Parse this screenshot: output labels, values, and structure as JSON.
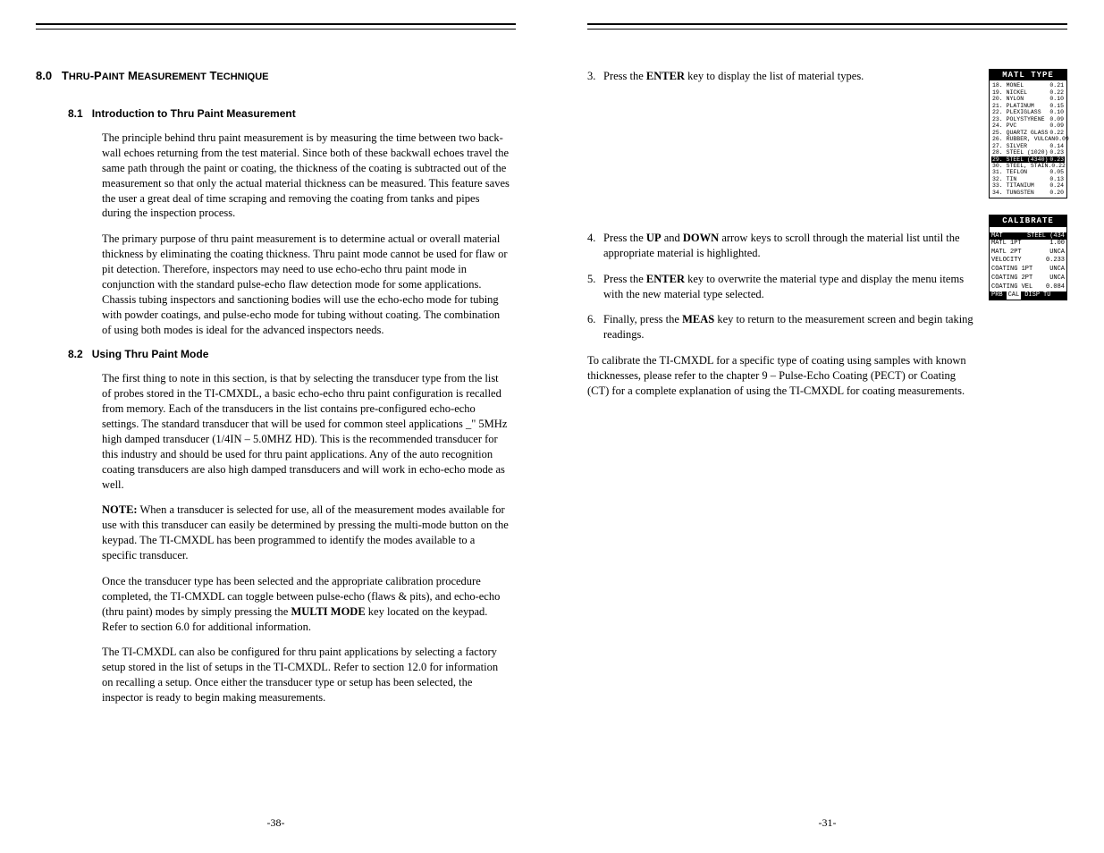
{
  "left": {
    "h1_num": "8.0",
    "h1_a": "T",
    "h1_b": "HRU",
    "h1_c": "-P",
    "h1_d": "AINT",
    "h1_e": " M",
    "h1_f": "EASUREMENT",
    "h1_g": " T",
    "h1_h": "ECHNIQUE",
    "s81_num": "8.1",
    "s81_title": "Introduction to Thru Paint Measurement",
    "p1": "The principle behind thru paint measurement is by measuring the time between two back-wall echoes returning from the test material. Since both of these backwall echoes travel the same path through the paint or coating, the thickness of the coating is subtracted out of the measurement so that only the actual material thickness can be measured. This feature saves the user a great deal of time scraping and removing the coating from tanks and pipes during the inspection process.",
    "p2": "The primary purpose of thru paint measurement is to determine actual or overall material thickness by eliminating the coating thickness. Thru paint mode cannot be used for flaw or pit detection. Therefore, inspectors may need to use echo-echo thru paint mode in conjunction with the standard pulse-echo flaw detection mode for some applications. Chassis tubing inspectors and sanctioning bodies will use the echo-echo mode for tubing with powder coatings, and pulse-echo mode for tubing without coating. The combination of using both modes is ideal for the advanced inspectors needs.",
    "s82_num": "8.2",
    "s82_title": "Using Thru Paint Mode",
    "p3": "The first thing to note in this section, is that by selecting the transducer type from the list of probes stored in the TI-CMXDL, a basic echo-echo thru paint configuration is recalled from memory. Each of the transducers in the list contains pre-configured echo-echo settings. The standard transducer that will be used for common steel applications _\" 5MHz high damped transducer (1/4IN – 5.0MHZ HD). This is the recommended transducer for this industry and should be used for thru paint applications. Any of the auto recognition coating transducers are also high damped transducers and will work in echo-echo mode as well.",
    "p4a": "NOTE:",
    "p4b": " When a transducer is selected for use, all of the measurement modes available for use with this transducer can easily be determined by pressing the multi-mode button on  the keypad. The TI-CMXDL has been programmed to identify the modes available to a specific transducer.",
    "p5a": "Once the transducer type has been selected and the appropriate calibration procedure completed, the TI-CMXDL can toggle between pulse-echo (flaws & pits), and echo-echo (thru paint) modes by simply pressing the ",
    "p5b": "MULTI MODE",
    "p5c": " key located on the keypad. Refer to section 6.0 for additional information.",
    "p6": "The TI-CMXDL can also be configured for thru paint applications by selecting a factory setup stored in the list of setups in the TI-CMXDL. Refer to section 12.0 for information on recalling a setup. Once either the transducer type or setup has been selected, the inspector is ready to begin making measurements.",
    "footer": "-38-"
  },
  "right": {
    "step3_num": "3.",
    "step3a": "Press the ",
    "step3b": "ENTER",
    "step3c": " key to display the list of material types.",
    "step4_num": "4.",
    "step4a": "Press the ",
    "step4b": "UP",
    "step4c": " and ",
    "step4d": "DOWN",
    "step4e": " arrow keys to scroll through the material list until the appropriate material is highlighted.",
    "step5_num": "5.",
    "step5a": "Press the ",
    "step5b": "ENTER",
    "step5c": " key to overwrite the material type and display the menu items with the new material type selected.",
    "step6_num": "6.",
    "step6a": "Finally, press the ",
    "step6b": "MEAS",
    "step6c": " key to return to the measurement screen and begin taking readings.",
    "summary": "To calibrate the TI-CMXDL for a specific type of coating using samples with known thicknesses, please refer to the chapter 9 – Pulse-Echo Coating (PECT) or Coating (CT) for a complete explanation of using the TI-CMXDL for coating measurements.",
    "footer": "-31-",
    "lcd1": {
      "title": "MATL TYPE",
      "rows": [
        {
          "l": "18. MONEL",
          "r": "0.21",
          "sel": false
        },
        {
          "l": "19. NICKEL",
          "r": "0.22",
          "sel": false
        },
        {
          "l": "20. NYLON",
          "r": "0.10",
          "sel": false
        },
        {
          "l": "21. PLATINUM",
          "r": "0.15",
          "sel": false
        },
        {
          "l": "22. PLEXIGLASS",
          "r": "0.10",
          "sel": false
        },
        {
          "l": "23. POLYSTYRENE",
          "r": "0.09",
          "sel": false
        },
        {
          "l": "24. PVC",
          "r": "0.09",
          "sel": false
        },
        {
          "l": "25. QUARTZ GLASS",
          "r": "0.22",
          "sel": false
        },
        {
          "l": "26. RUBBER, VULCAN",
          "r": "0.09",
          "sel": false
        },
        {
          "l": "27. SILVER",
          "r": "0.14",
          "sel": false
        },
        {
          "l": "28. STEEL (1020)",
          "r": "0.23",
          "sel": false
        },
        {
          "l": "29. STEEL (4340)",
          "r": "0.23",
          "sel": true
        },
        {
          "l": "30. STEEL, STAIN.",
          "r": "0.22",
          "sel": false
        },
        {
          "l": "31. TEFLON",
          "r": "0.05",
          "sel": false
        },
        {
          "l": "32. TIN",
          "r": "0.13",
          "sel": false
        },
        {
          "l": "33. TITANIUM",
          "r": "0.24",
          "sel": false
        },
        {
          "l": "34. TUNGSTEN",
          "r": "0.20",
          "sel": false
        }
      ]
    },
    "lcd2": {
      "title": "CALIBRATE",
      "hdr_l": "MAT",
      "hdr_r": "STEEL (434",
      "rows": [
        {
          "l": "MATL 1PT",
          "r": "1.00"
        },
        {
          "l": "MATL 2PT",
          "r": "UNCA"
        },
        {
          "l": "VELOCITY",
          "r": "0.233"
        },
        {
          "l": "COATING 1PT",
          "r": "UNCA"
        },
        {
          "l": "COATING 2PT",
          "r": "UNCA"
        },
        {
          "l": "COATING VEL",
          "r": "0.084"
        }
      ],
      "ftr": [
        "PRB",
        "CAL",
        "DISP",
        "TU"
      ]
    }
  }
}
